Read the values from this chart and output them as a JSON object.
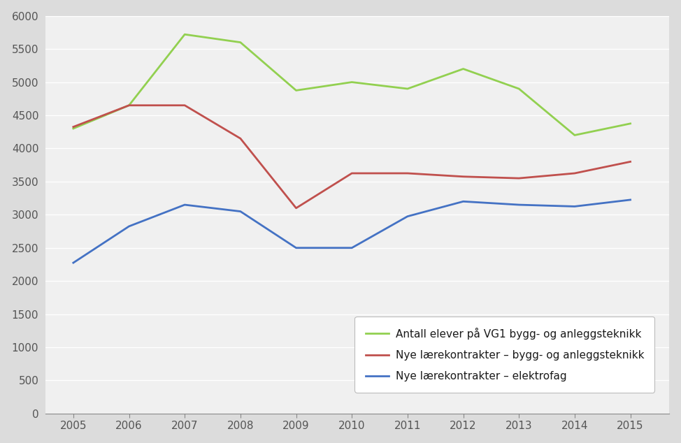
{
  "years": [
    2005,
    2006,
    2007,
    2008,
    2009,
    2010,
    2011,
    2012,
    2013,
    2014,
    2015
  ],
  "vg1_bygg": [
    4300,
    4650,
    5720,
    5600,
    4875,
    5000,
    4900,
    5200,
    4900,
    4200,
    4375
  ],
  "nye_bygg": [
    4325,
    4650,
    4650,
    4150,
    3100,
    3625,
    3625,
    3575,
    3550,
    3625,
    3800
  ],
  "nye_elektro": [
    2275,
    2825,
    3150,
    3050,
    2500,
    2500,
    2975,
    3200,
    3150,
    3125,
    3225
  ],
  "color_vg1": "#92d050",
  "color_bygg": "#c0504d",
  "color_elektro": "#4472c4",
  "legend_labels": [
    "Antall elever på VG1 bygg- og anleggsteknikk",
    "Nye lærekontrakter – bygg- og anleggsteknikk",
    "Nye lærekontrakter – elektrofag"
  ],
  "ylim": [
    0,
    6000
  ],
  "yticks": [
    0,
    500,
    1000,
    1500,
    2000,
    2500,
    3000,
    3500,
    4000,
    4500,
    5000,
    5500,
    6000
  ],
  "outer_bg": "#dcdcdc",
  "plot_bg": "#f0f0f0",
  "legend_bg": "#ffffff",
  "grid_color": "#ffffff",
  "axis_color": "#888888",
  "tick_color": "#555555",
  "linewidth": 2.0,
  "tick_fontsize": 11,
  "legend_fontsize": 11
}
